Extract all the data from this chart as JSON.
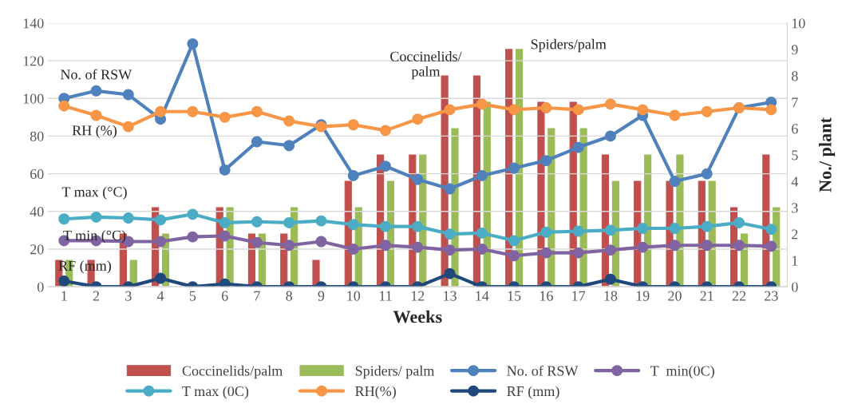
{
  "chart_data": {
    "type": "line",
    "xlabel": "Weeks",
    "y2label": "No./ plant",
    "categories": [
      "1",
      "2",
      "3",
      "4",
      "5",
      "6",
      "7",
      "8",
      "9",
      "10",
      "11",
      "12",
      "13",
      "14",
      "15",
      "16",
      "17",
      "18",
      "19",
      "20",
      "21",
      "22",
      "23"
    ],
    "ylim": [
      0,
      140
    ],
    "yticks": [
      0,
      20,
      40,
      60,
      80,
      100,
      120,
      140
    ],
    "y2lim": [
      0,
      10
    ],
    "y2ticks": [
      0,
      1,
      2,
      3,
      4,
      5,
      6,
      7,
      8,
      9,
      10
    ],
    "grid": "y",
    "legend": "bottom",
    "marker": "circle",
    "series": [
      {
        "name": "Coccinelids/palm",
        "type": "bar",
        "axis": "y2",
        "color": "#c0504d",
        "values": [
          1,
          1,
          2,
          3,
          0,
          3,
          2,
          2,
          1,
          4,
          5,
          5,
          8,
          8,
          9,
          7,
          7,
          5,
          4,
          4,
          4,
          3,
          5
        ]
      },
      {
        "name": "Spiders/ palm",
        "type": "bar",
        "axis": "y2",
        "color": "#9bbb59",
        "values": [
          1,
          0,
          1,
          2,
          0,
          3,
          2,
          3,
          0,
          3,
          4,
          5,
          6,
          7,
          9,
          6,
          6,
          4,
          5,
          5,
          4,
          2,
          3
        ]
      },
      {
        "name": "No. of RSW",
        "color": "#4f81bd",
        "values": [
          100,
          104,
          102,
          89,
          129,
          62,
          77,
          75,
          86,
          59,
          64,
          57,
          52,
          59,
          63,
          67,
          74,
          80,
          91,
          56,
          60,
          95,
          98
        ]
      },
      {
        "name": "T  min(0C)",
        "color": "#8064a2",
        "values": [
          24.5,
          24.5,
          24,
          24,
          26.5,
          27,
          23.5,
          22,
          24,
          20,
          22,
          21,
          19.5,
          20,
          16.5,
          18,
          18,
          19.5,
          21,
          22,
          22,
          22,
          21.5
        ]
      },
      {
        "name": "T max (0C)",
        "color": "#4bacc6",
        "values": [
          36,
          37,
          36.5,
          35.5,
          38.5,
          34,
          34.5,
          34,
          35,
          33,
          32,
          32,
          28,
          28.5,
          24.5,
          29,
          29.5,
          30,
          31,
          31,
          32,
          34,
          30.5
        ]
      },
      {
        "name": "RH(%)",
        "color": "#f79646",
        "values": [
          96,
          91,
          85,
          93,
          93,
          90,
          93,
          88,
          85,
          86,
          83,
          89,
          94,
          97,
          94,
          95,
          94,
          97,
          94,
          91,
          93,
          95,
          94
        ]
      },
      {
        "name": "RF (mm)",
        "color": "#1f497d",
        "values": [
          3,
          0,
          0,
          4.5,
          0,
          1.5,
          0,
          0,
          0,
          0,
          0,
          0,
          7,
          0,
          0,
          0,
          0,
          4,
          0,
          0,
          0,
          0,
          0
        ]
      }
    ],
    "annotations": [
      "No. of RSW",
      "RH (%)",
      "T max (°C)",
      "T min (°C)",
      "RF (mm)",
      "Coccinelids/\npalm",
      "Spiders/palm"
    ]
  }
}
